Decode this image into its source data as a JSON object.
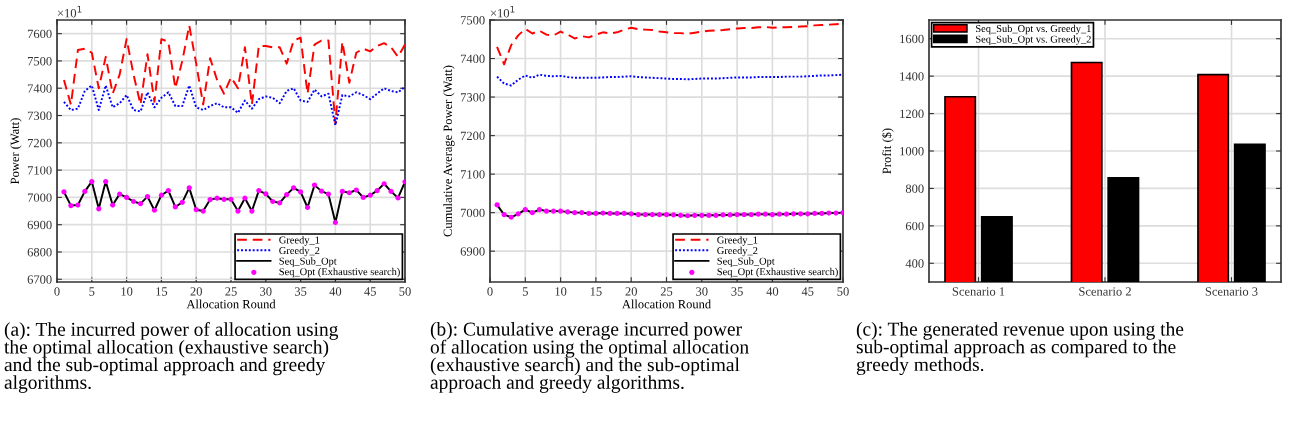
{
  "chart_data": [
    {
      "type": "line",
      "xlabel": "Allocation Round",
      "ylabel": "Power (Watt)",
      "xlim": [
        0,
        50
      ],
      "xticks": [
        0,
        5,
        10,
        15,
        20,
        25,
        30,
        35,
        40,
        45,
        50
      ],
      "ylim": [
        6690,
        7650
      ],
      "yticks": [
        6700,
        6800,
        6900,
        7000,
        7100,
        7200,
        7300,
        7400,
        7500,
        7600
      ],
      "grid": true,
      "legend": "bottom right",
      "x": [
        1,
        2,
        3,
        4,
        5,
        6,
        7,
        8,
        9,
        10,
        11,
        12,
        13,
        14,
        15,
        16,
        17,
        18,
        19,
        20,
        21,
        22,
        23,
        24,
        25,
        26,
        27,
        28,
        29,
        30,
        31,
        32,
        33,
        34,
        35,
        36,
        37,
        38,
        39,
        40,
        41,
        42,
        43,
        44,
        45,
        46,
        47,
        48,
        49,
        50
      ],
      "series": [
        {
          "name": "Greedy_1",
          "color": "#ff0000",
          "line_style": "dashed",
          "marker": "none",
          "values": [
            7430,
            7340,
            7540,
            7545,
            7530,
            7400,
            7515,
            7380,
            7450,
            7580,
            7450,
            7340,
            7525,
            7350,
            7580,
            7570,
            7400,
            7500,
            7630,
            7490,
            7340,
            7510,
            7430,
            7380,
            7440,
            7400,
            7550,
            7340,
            7555,
            7555,
            7550,
            7550,
            7490,
            7575,
            7585,
            7380,
            7560,
            7575,
            7575,
            7270,
            7570,
            7420,
            7530,
            7545,
            7535,
            7555,
            7565,
            7550,
            7515,
            7560
          ]
        },
        {
          "name": "Greedy_2",
          "color": "#0000ff",
          "line_style": "dotted",
          "marker": "none",
          "values": [
            7350,
            7320,
            7325,
            7390,
            7410,
            7320,
            7410,
            7330,
            7345,
            7375,
            7320,
            7315,
            7385,
            7330,
            7365,
            7385,
            7335,
            7335,
            7410,
            7330,
            7320,
            7335,
            7345,
            7330,
            7330,
            7310,
            7355,
            7325,
            7360,
            7370,
            7365,
            7345,
            7390,
            7400,
            7355,
            7350,
            7395,
            7370,
            7380,
            7265,
            7375,
            7370,
            7385,
            7375,
            7360,
            7380,
            7400,
            7390,
            7385,
            7405
          ]
        },
        {
          "name": "Seq_Sub_Opt",
          "color": "#000000",
          "line_style": "solid",
          "marker": "none",
          "values": [
            7020,
            6970,
            6972,
            7022,
            7058,
            6958,
            7058,
            6972,
            7012,
            7000,
            6985,
            6977,
            7003,
            6953,
            7008,
            7025,
            6965,
            6982,
            7035,
            6955,
            6950,
            6992,
            6997,
            6993,
            6993,
            6950,
            6997,
            6950,
            7025,
            7013,
            6985,
            6980,
            7010,
            7035,
            7020,
            6963,
            7045,
            7023,
            7012,
            6908,
            7022,
            7017,
            7027,
            7000,
            7008,
            7025,
            7050,
            7022,
            6998,
            7057
          ]
        },
        {
          "name": "Seq_Opt (Exhaustive search)",
          "type": "scatter",
          "color": "#ff00ff",
          "marker": "circle",
          "values": [
            7020,
            6970,
            6972,
            7022,
            7058,
            6958,
            7058,
            6972,
            7012,
            7000,
            6985,
            6977,
            7003,
            6953,
            7008,
            7025,
            6965,
            6982,
            7035,
            6955,
            6950,
            6992,
            6997,
            6993,
            6993,
            6950,
            6997,
            6950,
            7025,
            7013,
            6985,
            6980,
            7010,
            7035,
            7020,
            6963,
            7045,
            7023,
            7012,
            6908,
            7022,
            7017,
            7027,
            7000,
            7008,
            7025,
            7050,
            7022,
            6998,
            7057
          ]
        }
      ],
      "annotations": [
        "×10$^{1}$",
        "(a): The incurred power of allocation using\nthe optimal allocation (exhaustive search)\nand the sub-optimal approach and greedy\nalgorithms."
      ]
    },
    {
      "type": "line",
      "xlabel": "Allocation Round",
      "ylabel": "Cumulative Average Power (Watt)",
      "xlim": [
        0,
        50
      ],
      "xticks": [
        0,
        5,
        10,
        15,
        20,
        25,
        30,
        35,
        40,
        45,
        50
      ],
      "ylim": [
        6820,
        7500
      ],
      "yticks": [
        6900,
        7000,
        7100,
        7200,
        7300,
        7400,
        7500
      ],
      "grid": true,
      "legend": "bottom right",
      "x": [
        1,
        2,
        3,
        4,
        5,
        6,
        7,
        8,
        9,
        10,
        11,
        12,
        13,
        14,
        15,
        16,
        17,
        18,
        19,
        20,
        21,
        22,
        23,
        24,
        25,
        26,
        27,
        28,
        29,
        30,
        31,
        32,
        33,
        34,
        35,
        36,
        37,
        38,
        39,
        40,
        41,
        42,
        43,
        44,
        45,
        46,
        47,
        48,
        49,
        50
      ],
      "series": [
        {
          "name": "Greedy_1",
          "color": "#ff0000",
          "line_style": "dashed",
          "marker": "none",
          "values": [
            7430,
            7385,
            7435,
            7460,
            7477,
            7465,
            7472,
            7462,
            7460,
            7470,
            7462,
            7452,
            7458,
            7455,
            7462,
            7468,
            7465,
            7468,
            7475,
            7480,
            7476,
            7475,
            7474,
            7470,
            7468,
            7466,
            7466,
            7464,
            7467,
            7470,
            7472,
            7473,
            7474,
            7476,
            7478,
            7479,
            7479,
            7481,
            7482,
            7480,
            7481,
            7481,
            7482,
            7483,
            7484,
            7486,
            7487,
            7488,
            7489,
            7490
          ]
        },
        {
          "name": "Greedy_2",
          "color": "#0000ff",
          "line_style": "dotted",
          "marker": "none",
          "values": [
            7353,
            7335,
            7330,
            7345,
            7356,
            7350,
            7358,
            7355,
            7354,
            7355,
            7352,
            7350,
            7350,
            7350,
            7350,
            7351,
            7352,
            7352,
            7353,
            7354,
            7352,
            7351,
            7350,
            7349,
            7348,
            7347,
            7347,
            7346,
            7347,
            7348,
            7348,
            7348,
            7349,
            7350,
            7351,
            7351,
            7351,
            7352,
            7352,
            7352,
            7352,
            7353,
            7353,
            7353,
            7354,
            7355,
            7356,
            7356,
            7357,
            7358
          ]
        },
        {
          "name": "Seq_Sub_Opt",
          "color": "#000000",
          "line_style": "solid",
          "marker": "none",
          "values": [
            7020,
            6995,
            6988,
            6997,
            7008,
            7000,
            7008,
            7004,
            7004,
            7004,
            7002,
            7000,
            7000,
            6998,
            6998,
            6999,
            6998,
            6998,
            6998,
            6997,
            6995,
            6995,
            6995,
            6995,
            6995,
            6994,
            6993,
            6992,
            6993,
            6993,
            6993,
            6993,
            6994,
            6994,
            6995,
            6995,
            6995,
            6996,
            6996,
            6995,
            6996,
            6996,
            6997,
            6997,
            6997,
            6998,
            6998,
            6999,
            6999,
            7000
          ]
        },
        {
          "name": "Seq_Opt (Exhaustive search)",
          "type": "scatter",
          "color": "#ff00ff",
          "marker": "circle",
          "values": [
            7020,
            6995,
            6988,
            6997,
            7008,
            7000,
            7008,
            7004,
            7004,
            7004,
            7002,
            7000,
            7000,
            6998,
            6998,
            6999,
            6998,
            6998,
            6998,
            6997,
            6995,
            6995,
            6995,
            6995,
            6995,
            6994,
            6993,
            6992,
            6993,
            6993,
            6993,
            6993,
            6994,
            6994,
            6995,
            6995,
            6995,
            6996,
            6996,
            6995,
            6996,
            6996,
            6997,
            6997,
            6997,
            6998,
            6998,
            6999,
            6999,
            7000
          ]
        }
      ],
      "annotations": [
        "×10$^{1}$",
        "(b): Cumulative average incurred power\nof allocation using the optimal allocation\n(exhaustive search) and the sub-optimal\napproach and greedy algorithms."
      ]
    },
    {
      "type": "bar",
      "ylabel": "Profit ($)",
      "categories": [
        "Scenario 1",
        "Scenario 2",
        "Scenario 3"
      ],
      "ylim": [
        300,
        1700
      ],
      "yticks": [
        400,
        600,
        800,
        1000,
        1200,
        1400,
        1600
      ],
      "grid": true,
      "legend": "top left",
      "series": [
        {
          "name": "Seq_Sub_Opt vs. Greedy_1",
          "color": "#ff0000",
          "values": [
            1290,
            1473,
            1408
          ]
        },
        {
          "name": "Seq_Sub_Opt vs. Greedy_2",
          "color": "#000000",
          "values": [
            648,
            857,
            1035
          ]
        }
      ],
      "annotations": [
        "(c): The generated revenue upon using the\nsub-optimal approach as compared to the\ngreedy methods."
      ]
    }
  ]
}
